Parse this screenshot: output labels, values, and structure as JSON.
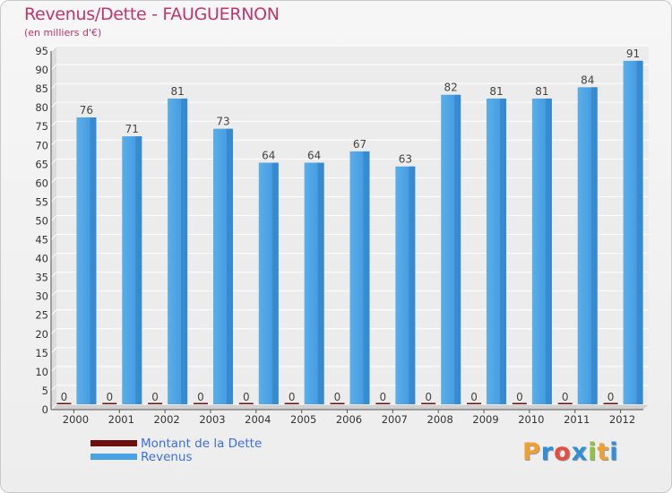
{
  "header": {
    "title": "Revenus/Dette - FAUGUERNON",
    "subtitle": "(en milliers d'€)"
  },
  "chart_data": {
    "type": "bar",
    "title": "Revenus/Dette - FAUGUERNON",
    "subtitle": "(en milliers d'€)",
    "categories": [
      "2000",
      "2001",
      "2002",
      "2003",
      "2004",
      "2005",
      "2006",
      "2007",
      "2008",
      "2009",
      "2010",
      "2011",
      "2012"
    ],
    "series": [
      {
        "name": "Montant de la Dette",
        "color": "#6b0f0f",
        "values": [
          0,
          0,
          0,
          0,
          0,
          0,
          0,
          0,
          0,
          0,
          0,
          0,
          0
        ]
      },
      {
        "name": "Revenus",
        "color": "#4aa3e6",
        "values": [
          76,
          71,
          81,
          73,
          64,
          64,
          67,
          63,
          82,
          81,
          81,
          84,
          91
        ]
      }
    ],
    "ylim": [
      0,
      95
    ],
    "yticks": [
      0,
      5,
      10,
      15,
      20,
      25,
      30,
      35,
      40,
      45,
      50,
      55,
      60,
      65,
      70,
      75,
      80,
      85,
      90,
      95
    ],
    "grid": true,
    "legend_position": "bottom-left"
  },
  "legend": {
    "items": [
      {
        "label": "Montant de la Dette",
        "color": "#6b0f0f"
      },
      {
        "label": "Revenus",
        "color": "#4aa3e6"
      }
    ]
  },
  "logo": {
    "letters": [
      "P",
      "r",
      "o",
      "x",
      "i",
      "t",
      "i"
    ],
    "colors": [
      "#f0a030",
      "#2f8fd8",
      "#e84c3d",
      "#2f8fd8",
      "#8cc63f",
      "#f0a030",
      "#2f8fd8"
    ]
  }
}
